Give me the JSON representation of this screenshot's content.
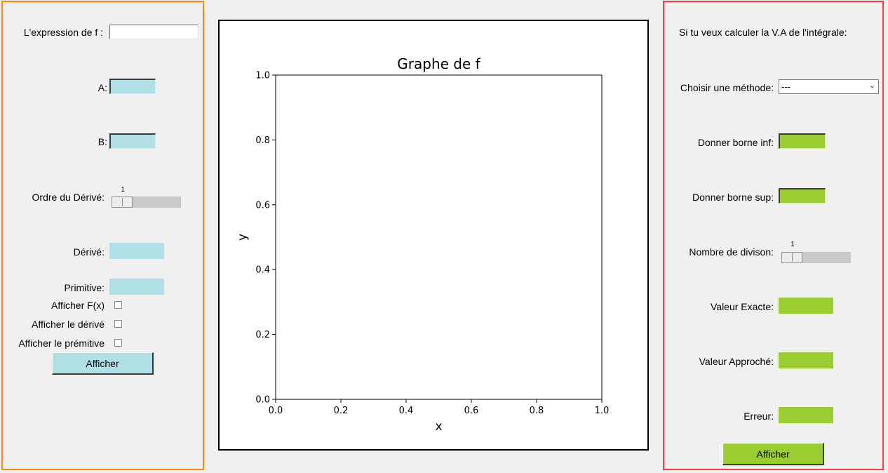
{
  "left": {
    "expression_label": "L'expression de f :",
    "expression_value": "",
    "a_label": "A:",
    "a_value": "",
    "b_label": "B:",
    "b_value": "",
    "order_label": "Ordre du Dérivé:",
    "order_value": "1",
    "derivative_label": "Dérivé:",
    "primitive_label": "Primitive:",
    "show_f_label": "Afficher F(x)",
    "show_derivative_label": "Afficher le dérivé",
    "show_primitive_label": "Afficher le prémitive",
    "submit_label": "Afficher"
  },
  "right": {
    "heading": "Si tu veux calculer la V.A de l'intégrale:",
    "method_label": "Choisir une méthode:",
    "method_selected": "---",
    "lower_label": "Donner borne inf:",
    "lower_value": "",
    "upper_label": "Donner borne sup:",
    "upper_value": "",
    "divisions_label": "Nombre de divison:",
    "divisions_value": "1",
    "exact_label": "Valeur Exacte:",
    "approx_label": "Valeur Approché:",
    "error_label": "Erreur:",
    "submit_label": "Afficher"
  },
  "colors": {
    "left_border": "#ff8c00",
    "right_border": "#ff3b3b",
    "left_fields": "#b0e0e6",
    "right_fields": "#9acd32"
  },
  "chart_data": {
    "type": "line",
    "title": "Graphe de f",
    "xlabel": "x",
    "ylabel": "y",
    "xlim": [
      0.0,
      1.0
    ],
    "ylim": [
      0.0,
      1.0
    ],
    "x_ticks": [
      "0.0",
      "0.2",
      "0.4",
      "0.6",
      "0.8",
      "1.0"
    ],
    "y_ticks": [
      "0.0",
      "0.2",
      "0.4",
      "0.6",
      "0.8",
      "1.0"
    ],
    "grid": false,
    "series": []
  }
}
